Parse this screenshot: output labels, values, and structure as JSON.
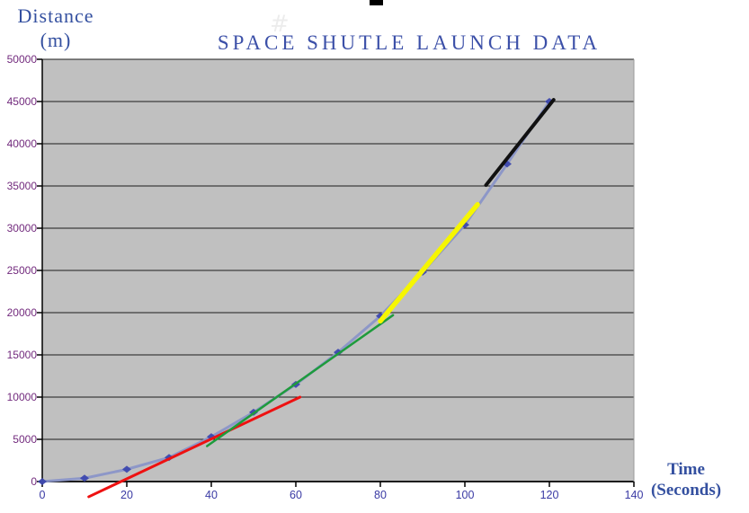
{
  "labels": {
    "y_axis_title_line1": "Distance",
    "y_axis_title_line2": "(m)",
    "x_axis_title_line1": "Time",
    "x_axis_title_line2": "(Seconds)"
  },
  "artifacts": {
    "hash_glyph": "#"
  },
  "colors": {
    "chart_title_text": "#3c50a8",
    "axis_title_text": "#3450a0",
    "y_tick_text": "#722a7d",
    "x_tick_text": "#3a3aa4",
    "plot_background": "#c0c0c0",
    "gridline": "#1c1c1c",
    "axis_line": "#000000",
    "plot_right_border": "#9a9a9a"
  },
  "chart_data": {
    "type": "line",
    "title": "SPACE SHUTLE LAUNCH DATA",
    "xlabel": "Time (Seconds)",
    "ylabel": "Distance (m)",
    "xlim": [
      0,
      140
    ],
    "ylim": [
      0,
      50000
    ],
    "x_ticks": [
      0,
      20,
      40,
      60,
      80,
      100,
      120,
      140
    ],
    "y_ticks": [
      0,
      5000,
      10000,
      15000,
      20000,
      25000,
      30000,
      35000,
      40000,
      45000,
      50000
    ],
    "grid": "horizontal",
    "legend": false,
    "series": [
      {
        "name": "shuttle-distance-curve",
        "style": "curve-with-diamond-markers",
        "color": "#8a95c8",
        "marker_color": "#3742ad",
        "width": 3,
        "x": [
          0,
          10,
          20,
          30,
          40,
          50,
          60,
          70,
          80,
          90,
          100,
          110,
          120
        ],
        "y": [
          0,
          400,
          1450,
          2850,
          5300,
          8200,
          11500,
          15300,
          19600,
          24800,
          30400,
          37600,
          45000
        ]
      },
      {
        "name": "velocity-secant-red",
        "style": "straight-line",
        "color": "#ee1111",
        "width": 3,
        "x": [
          11,
          61
        ],
        "y": [
          -1800,
          10000
        ]
      },
      {
        "name": "velocity-secant-green",
        "style": "straight-line",
        "color": "#1e9b3c",
        "width": 2.5,
        "x": [
          39,
          83
        ],
        "y": [
          4200,
          19700
        ]
      },
      {
        "name": "velocity-secant-yellow",
        "style": "straight-line",
        "color": "#f6f600",
        "width": 5.5,
        "x": [
          80,
          103
        ],
        "y": [
          19000,
          32800
        ]
      },
      {
        "name": "velocity-secant-black",
        "style": "straight-line",
        "color": "#111111",
        "width": 4,
        "x": [
          105,
          121
        ],
        "y": [
          35100,
          45200
        ]
      }
    ]
  }
}
